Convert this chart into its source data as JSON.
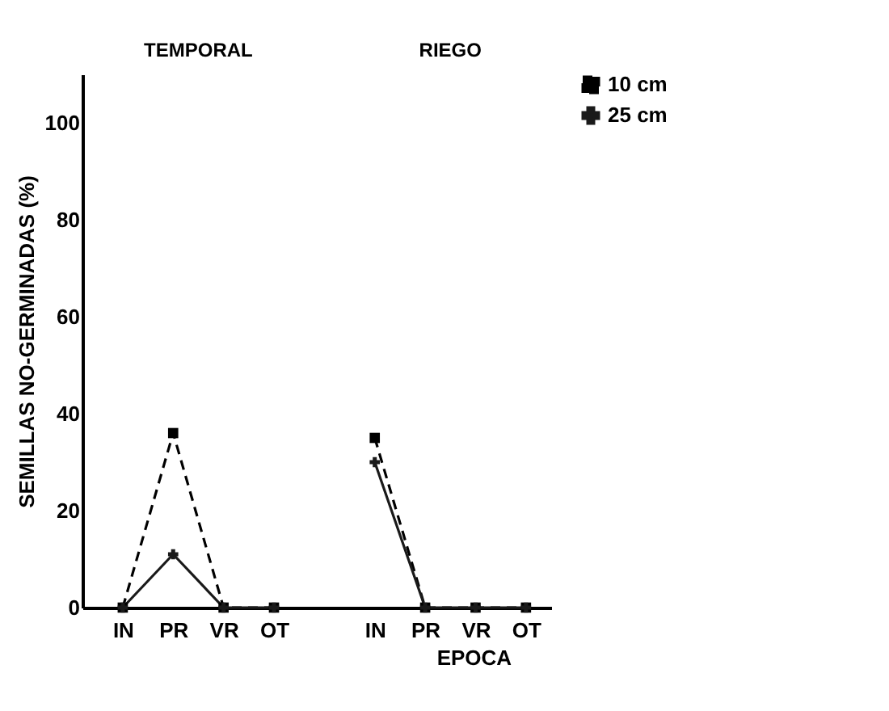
{
  "chart_data": {
    "type": "line",
    "categories": [
      "IN",
      "PR",
      "VR",
      "OT",
      null,
      "IN",
      "PR",
      "VR",
      "OT"
    ],
    "series": [
      {
        "name": "10 cm",
        "color": "#000000",
        "line_style": "dashed",
        "marker": "square",
        "values": [
          0,
          36,
          0,
          0,
          null,
          35,
          0,
          0,
          0
        ]
      },
      {
        "name": "25 cm",
        "color": "#1a1a1a",
        "line_style": "solid",
        "marker": "cross",
        "values": [
          0,
          11,
          0,
          0,
          null,
          30,
          0,
          0,
          0
        ]
      }
    ],
    "xlabel": "EPOCA",
    "ylabel": "SEMILLAS NO-GERMINADAS (%)",
    "annotations": [
      "TEMPORAL",
      "RIEGO"
    ],
    "ylim": [
      0,
      110
    ],
    "yticks": [
      0,
      20,
      40,
      60,
      80,
      100
    ],
    "grid": false,
    "legend": "right"
  }
}
